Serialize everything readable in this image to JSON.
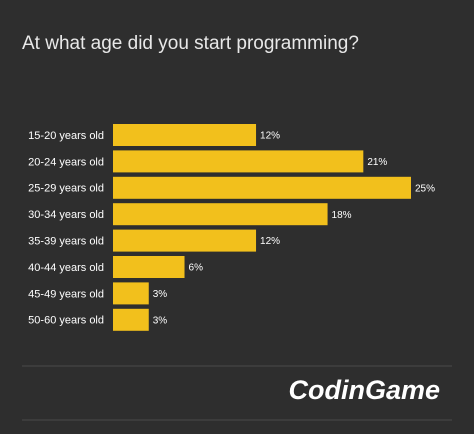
{
  "chart_data": {
    "type": "bar",
    "orientation": "horizontal",
    "title": "At what age did you start programming?",
    "categories": [
      "15-20 years old",
      "20-24 years old",
      "25-29 years old",
      "30-34 years old",
      "35-39 years old",
      "40-44 years old",
      "45-49 years old",
      "50-60 years old"
    ],
    "values": [
      12,
      21,
      25,
      18,
      12,
      6,
      3,
      3
    ],
    "value_labels": [
      "12%",
      "21%",
      "25%",
      "18%",
      "12%",
      "6%",
      "3%",
      "3%"
    ],
    "color": "#f2c01c",
    "xlim": [
      0,
      25
    ],
    "logo": "CodinGame"
  }
}
